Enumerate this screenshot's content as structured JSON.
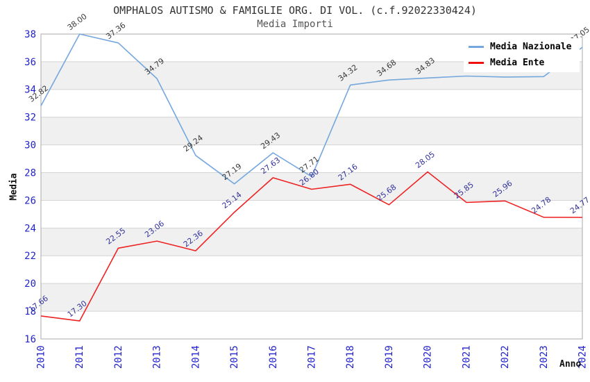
{
  "header": {
    "title": "OMPHALOS AUTISMO & FAMIGLIE ORG. DI VOL. (c.f.92022330424)",
    "subtitle": "Media Importi"
  },
  "axes": {
    "y_title": "Media",
    "x_title": "Anno",
    "tick_color": "#2222cc"
  },
  "legend": {
    "items": [
      {
        "label": "Media Nazionale",
        "color": "#74a7dd"
      },
      {
        "label": "Media Ente",
        "color": "#ee1111"
      }
    ]
  },
  "chart_data": {
    "type": "line",
    "title": "OMPHALOS AUTISMO & FAMIGLIE ORG. DI VOL. (c.f.92022330424)",
    "subtitle": "Media Importi",
    "xlabel": "Anno",
    "ylabel": "Media",
    "categories": [
      "2010",
      "2011",
      "2012",
      "2013",
      "2014",
      "2015",
      "2016",
      "2017",
      "2018",
      "2019",
      "2020",
      "2021",
      "2022",
      "2023",
      "2024"
    ],
    "ylim": [
      16,
      38
    ],
    "y_tick_step": 2,
    "grid": "horizontal",
    "band_fill": "alternating",
    "legend_position": "top-right",
    "series": [
      {
        "name": "Media Nazionale",
        "color": "#74a7dd",
        "label_color": "#3a3a3a",
        "values": [
          32.82,
          38.0,
          37.36,
          34.79,
          29.24,
          27.19,
          29.43,
          27.71,
          34.32,
          34.68,
          34.83,
          34.97,
          34.9,
          34.93,
          37.05
        ],
        "labels": [
          "32.82",
          "38.00",
          "37.36",
          "34.79",
          "29.24",
          "27.19",
          "29.43",
          "27.71",
          "34.32",
          "34.68",
          "34.83",
          "",
          "",
          "",
          "37.05"
        ]
      },
      {
        "name": "Media Ente",
        "color": "#ee2222",
        "label_color": "#333399",
        "values": [
          17.66,
          17.3,
          22.55,
          23.06,
          22.36,
          25.14,
          27.63,
          26.8,
          27.16,
          25.68,
          28.05,
          25.85,
          25.96,
          24.78,
          24.77
        ],
        "labels": [
          "17.66",
          "17.30",
          "22.55",
          "23.06",
          "22.36",
          "25.14",
          "27.63",
          "26.80",
          "27.16",
          "25.68",
          "28.05",
          "25.85",
          "25.96",
          "24.78",
          "24.77"
        ]
      }
    ],
    "style": {
      "band_color": "#f0f0f0",
      "grid_color": "#d4d4d4",
      "border_color": "#aaaaaa",
      "plot_bg": "#ffffff"
    }
  }
}
